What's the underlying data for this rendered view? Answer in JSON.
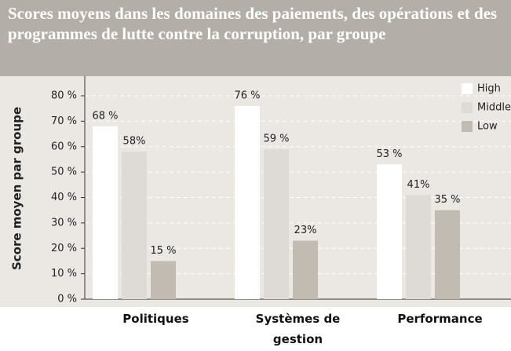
{
  "chart_data": {
    "type": "bar",
    "title": "Scores moyens dans les domaines des paiements, des opérations et des programmes de lutte contre la corruption, par groupe",
    "y_label": "Score moyen par groupe",
    "categories": [
      "Politiques",
      "Systèmes de gestion",
      "Performance"
    ],
    "series": [
      {
        "name": "High",
        "color": "#ffffff",
        "values": [
          68,
          76,
          53
        ],
        "value_labels": [
          "68 %",
          "76 %",
          "53 %"
        ]
      },
      {
        "name": "Middle",
        "color": "#dedbd6",
        "values": [
          58,
          59,
          41
        ],
        "value_labels": [
          "58%",
          "59 %",
          "41%"
        ]
      },
      {
        "name": "Low",
        "color": "#c2bbb1",
        "values": [
          15,
          23,
          35
        ],
        "value_labels": [
          "15 %",
          "23%",
          "35 %"
        ]
      }
    ],
    "ylim": [
      0,
      80
    ],
    "yticks": [
      {
        "value": 0,
        "label": "0 %"
      },
      {
        "value": 10,
        "label": "10 %"
      },
      {
        "value": 20,
        "label": "20 %"
      },
      {
        "value": 30,
        "label": "30 %"
      },
      {
        "value": 40,
        "label": "40 %"
      },
      {
        "value": 50,
        "label": "50 %"
      },
      {
        "value": 60,
        "label": "60 %"
      },
      {
        "value": 70,
        "label": "70 %"
      },
      {
        "value": 80,
        "label": "80 %"
      }
    ],
    "grid": true,
    "legend": "top-right"
  }
}
